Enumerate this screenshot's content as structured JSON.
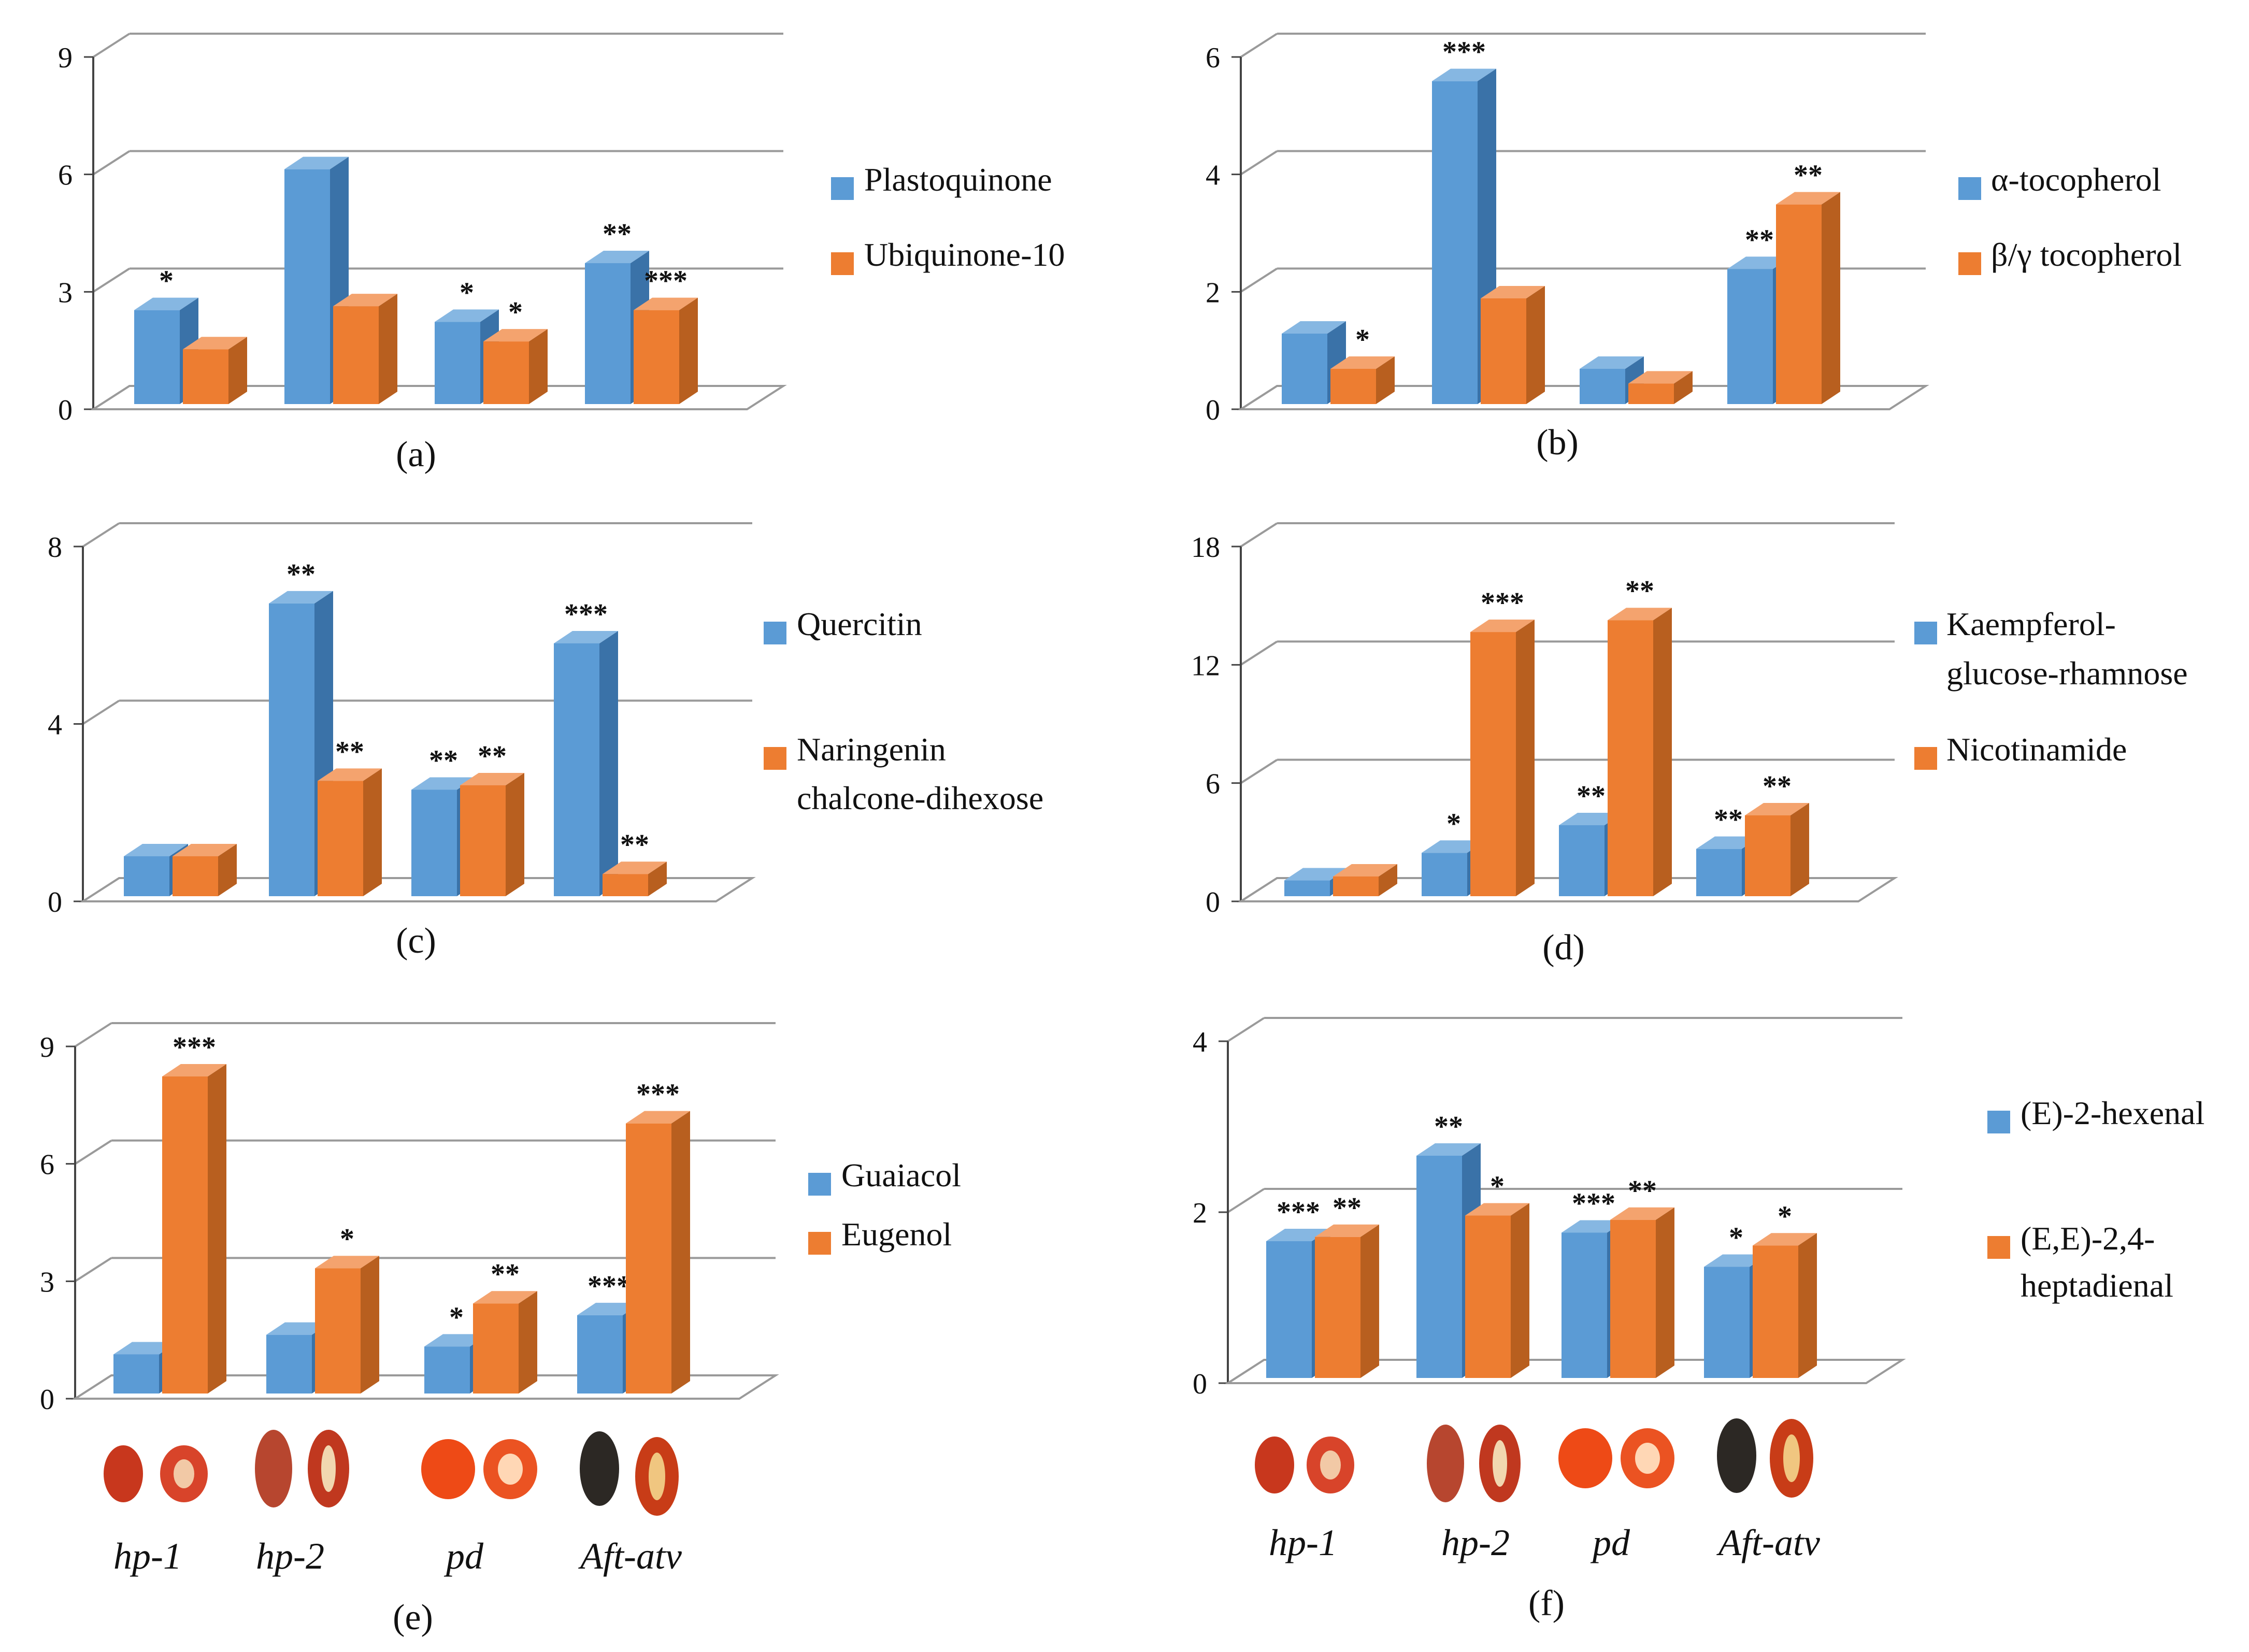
{
  "colors": {
    "blue": "#5B9BD5",
    "blue_side": "#3A72A8",
    "blue_top": "#86B7E2",
    "orange": "#ED7D31",
    "orange_side": "#B85F1F",
    "orange_top": "#F4A36E",
    "grid": "#9a9a9a",
    "axis": "#444444"
  },
  "categories": [
    "hp-1",
    "hp-2",
    "pd",
    "Aft-atv"
  ],
  "chart_data": [
    {
      "type": "bar",
      "panel": "(a)",
      "ylim": [
        0,
        9
      ],
      "yticks": [
        "0",
        "3",
        "6",
        "9"
      ],
      "series": [
        {
          "name": "Plastoquinone",
          "values": [
            2.4,
            6.0,
            2.1,
            3.6
          ],
          "stars": [
            "*",
            "",
            "*",
            "**"
          ]
        },
        {
          "name": "Ubiquinone-10",
          "values": [
            1.4,
            2.5,
            1.6,
            2.4
          ],
          "stars": [
            "",
            "",
            "*",
            "***"
          ]
        }
      ]
    },
    {
      "type": "bar",
      "panel": "(b)",
      "ylim": [
        0,
        6
      ],
      "yticks": [
        "0",
        "2",
        "4",
        "6"
      ],
      "series": [
        {
          "name": "α-tocopherol",
          "values": [
            1.2,
            5.5,
            0.6,
            2.3
          ],
          "stars": [
            "",
            "***",
            "",
            "**"
          ]
        },
        {
          "name": "β/γ tocopherol",
          "values": [
            0.6,
            1.8,
            0.35,
            3.4
          ],
          "stars": [
            "*",
            "",
            "",
            "**"
          ]
        }
      ]
    },
    {
      "type": "bar",
      "panel": "(c)",
      "ylim": [
        0,
        8
      ],
      "yticks": [
        "0",
        "4",
        "8"
      ],
      "series": [
        {
          "name": "Quercitin",
          "values": [
            0.9,
            6.6,
            2.4,
            5.7
          ],
          "stars": [
            "",
            "**",
            "**",
            "***"
          ]
        },
        {
          "name": "Naringenin chalcone-dihexose",
          "values": [
            0.9,
            2.6,
            2.5,
            0.5
          ],
          "stars": [
            "",
            "**",
            "**",
            "**"
          ]
        }
      ]
    },
    {
      "type": "bar",
      "panel": "(d)",
      "ylim": [
        0,
        18
      ],
      "yticks": [
        "0",
        "6",
        "12",
        "18"
      ],
      "series": [
        {
          "name": "Kaempferol-glucose-rhamnose",
          "values": [
            0.8,
            2.2,
            3.6,
            2.4
          ],
          "stars": [
            "",
            "*",
            "**",
            "**"
          ]
        },
        {
          "name": "Nicotinamide",
          "values": [
            1.0,
            13.4,
            14.0,
            4.1
          ],
          "stars": [
            "",
            "***",
            "**",
            "**"
          ]
        }
      ]
    },
    {
      "type": "bar",
      "panel": "(e)",
      "ylim": [
        0,
        9
      ],
      "yticks": [
        "0",
        "3",
        "6",
        "9"
      ],
      "series": [
        {
          "name": "Guaiacol",
          "values": [
            1.0,
            1.5,
            1.2,
            2.0
          ],
          "stars": [
            "",
            "",
            "*",
            "***"
          ]
        },
        {
          "name": "Eugenol",
          "values": [
            8.1,
            3.2,
            2.3,
            6.9
          ],
          "stars": [
            "***",
            "*",
            "**",
            "***"
          ]
        }
      ]
    },
    {
      "type": "bar",
      "panel": "(f)",
      "ylim": [
        0,
        4
      ],
      "yticks": [
        "0",
        "2",
        "4"
      ],
      "series": [
        {
          "name": "(E)-2-hexenal",
          "values": [
            1.6,
            2.6,
            1.7,
            1.3
          ],
          "stars": [
            "***",
            "**",
            "***",
            "*"
          ]
        },
        {
          "name": "(E,E)-2,4-heptadienal",
          "values": [
            1.65,
            1.9,
            1.85,
            1.55
          ],
          "stars": [
            "**",
            "*",
            "**",
            "*"
          ]
        }
      ]
    }
  ]
}
